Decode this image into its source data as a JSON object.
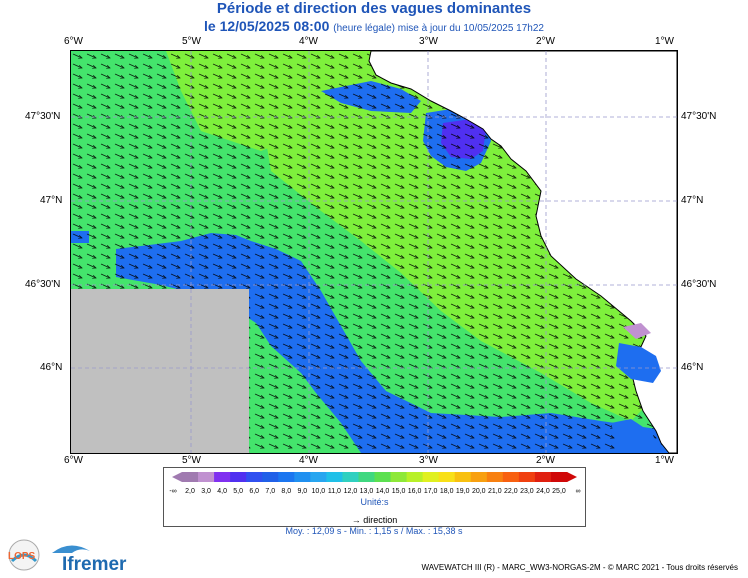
{
  "title": "Période et direction des vagues dominantes",
  "subtitle_date": "le 12/05/2025 08:00",
  "subtitle_note": "(heure légale) mise à jour du 10/05/2025 17h22",
  "lon_ticks": [
    "6°W",
    "5°W",
    "4°W",
    "3°W",
    "2°W",
    "1°W"
  ],
  "lat_ticks": [
    "47°30'N",
    "47°N",
    "46°30'N",
    "46°N"
  ],
  "colorbar": {
    "labels": [
      "-∞",
      "2,0",
      "3,0",
      "4,0",
      "5,0",
      "6,0",
      "7,0",
      "8,0",
      "9,0",
      "10,0",
      "11,0",
      "12,0",
      "13,0",
      "14,0",
      "15,0",
      "16,0",
      "17,0",
      "18,0",
      "19,0",
      "20,0",
      "21,0",
      "22,0",
      "23,0",
      "24,0",
      "25,0",
      "∞"
    ],
    "colors": [
      "#a07ab0",
      "#c091d0",
      "#8030f0",
      "#5030f0",
      "#3050f0",
      "#2060e8",
      "#1b76f0",
      "#2090f0",
      "#28a6f0",
      "#20c0e8",
      "#30d0c0",
      "#40d880",
      "#5ce050",
      "#8ee838",
      "#b8f028",
      "#e0f020",
      "#f8e018",
      "#f8c010",
      "#f8a010",
      "#f88010",
      "#f86010",
      "#f04010",
      "#e02010",
      "#d00808"
    ],
    "units": "Unité:s"
  },
  "direction_label": "direction",
  "stats": "Moy. : 12,09 s   -   Min. : 1,15 s / Max. : 15,38 s",
  "footer": "WAVEWATCH III (R) - MARC_WW3-NORGAS-2M - © MARC 2021 - Tous droits réservés",
  "logos": {
    "lops": "LOPS",
    "ifremer": "Ifremer"
  },
  "map_colors": {
    "sea_green_light": "#7ef03c",
    "sea_green": "#44e46c",
    "sea_blue": "#1e6ef0",
    "sea_violet": "#5030f0",
    "land": "#ffffff",
    "nodata": "#c0c0c0"
  }
}
